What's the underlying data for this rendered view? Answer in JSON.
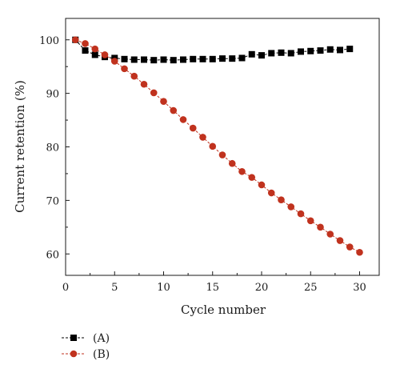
{
  "chart_data": {
    "type": "line",
    "xlabel": "Cycle number",
    "ylabel": "Current retention (%)",
    "xlim": [
      0,
      32
    ],
    "ylim": [
      56,
      104
    ],
    "xticks": [
      0,
      5,
      10,
      15,
      20,
      25,
      30
    ],
    "yticks": [
      60,
      70,
      80,
      90,
      100
    ],
    "grid": false,
    "legend_position": "bottom-left",
    "series": [
      {
        "name": "(A)",
        "color": "#000000",
        "marker": "square",
        "line_style": "dashed",
        "x": [
          1,
          2,
          3,
          4,
          5,
          6,
          7,
          8,
          9,
          10,
          11,
          12,
          13,
          14,
          15,
          16,
          17,
          18,
          19,
          20,
          21,
          22,
          23,
          24,
          25,
          26,
          27,
          28,
          29
        ],
        "values": [
          100,
          98.0,
          97.2,
          96.8,
          96.6,
          96.4,
          96.3,
          96.3,
          96.2,
          96.3,
          96.2,
          96.3,
          96.4,
          96.4,
          96.4,
          96.5,
          96.5,
          96.6,
          97.3,
          97.1,
          97.5,
          97.6,
          97.5,
          97.8,
          97.9,
          98.0,
          98.2,
          98.1,
          98.3
        ]
      },
      {
        "name": "(B)",
        "color": "#c0321e",
        "marker": "circle",
        "line_style": "dashed",
        "x": [
          1,
          2,
          3,
          4,
          5,
          6,
          7,
          8,
          9,
          10,
          11,
          12,
          13,
          14,
          15,
          16,
          17,
          18,
          19,
          20,
          21,
          22,
          23,
          24,
          25,
          26,
          27,
          28,
          29,
          30
        ],
        "values": [
          100,
          99.3,
          98.3,
          97.2,
          96.0,
          94.6,
          93.2,
          91.7,
          90.1,
          88.5,
          86.8,
          85.1,
          83.5,
          81.8,
          80.1,
          78.5,
          76.9,
          75.4,
          74.3,
          72.9,
          71.4,
          70.1,
          68.8,
          67.5,
          66.2,
          65.0,
          63.7,
          62.5,
          61.3,
          60.3
        ]
      }
    ]
  }
}
